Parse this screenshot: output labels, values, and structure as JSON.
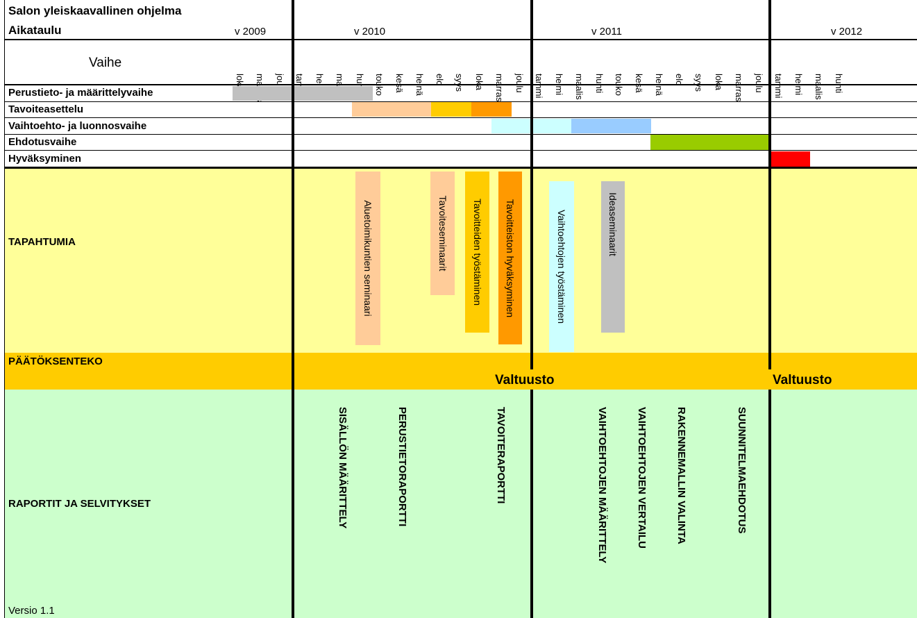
{
  "header": {
    "title": "Salon yleiskaavallinen ohjelma",
    "subtitle": "Aikataulu",
    "phase_header": "Vaihe",
    "years": [
      "v 2009",
      "v 2010",
      "v 2011",
      "v 2012"
    ]
  },
  "months": [
    "loka",
    "marras",
    "joulu",
    "tammi",
    "helmi",
    "maalis",
    "huhti",
    "touko",
    "kesä",
    "heinä",
    "elo",
    "syys",
    "loka",
    "marras",
    "joulu",
    "tammi",
    "helmi",
    "maalis",
    "huhti",
    "touko",
    "kesä",
    "heinä",
    "elo",
    "syys",
    "loka",
    "marras",
    "joulu",
    "tammi",
    "helmi",
    "maalis",
    "huhti"
  ],
  "phases": [
    {
      "label": "Perustieto- ja määrittelyvaihe",
      "start_month": 0,
      "end_month": 7,
      "color": "#c0c0c0"
    },
    {
      "label": "Tavoiteasettelu",
      "segments": [
        {
          "start_month": 5.6,
          "end_month": 9.5,
          "color": "#ffcc99"
        },
        {
          "start_month": 9.5,
          "end_month": 11.5,
          "color": "#ffcc00"
        },
        {
          "start_month": 11.5,
          "end_month": 13.5,
          "color": "#ff9900"
        }
      ]
    },
    {
      "label": "Vaihtoehto- ja luonnosvaihe",
      "segments": [
        {
          "start_month": 12.5,
          "end_month": 16.6,
          "color": "#ccffff"
        },
        {
          "start_month": 16.6,
          "end_month": 20.6,
          "color": "#99ccff"
        }
      ]
    },
    {
      "label": "Ehdotusvaihe",
      "start_month": 20.6,
      "end_month": 26.5,
      "color": "#99cc00"
    },
    {
      "label": "Hyväksyminen",
      "start_month": 27,
      "end_month": 29,
      "color": "#ff0000"
    }
  ],
  "events_section": {
    "label": "TAPAHTUMIA",
    "events": [
      {
        "text": "Aluetoimikuntien seminaari",
        "color": "#ffcc99"
      },
      {
        "text": "Tavoiteseminaarit",
        "color": "#ffcc99"
      },
      {
        "text": "Tavoitteiden työstäminen",
        "color": "#ffcc00"
      },
      {
        "text": "Tavoitteiston hyväksyminen",
        "color": "#ff9900"
      },
      {
        "text": "Vaihtoehtojen työstäminen",
        "color": "#ccffff"
      },
      {
        "text": "Ideaseminaarit",
        "color": "#c0c0c0"
      }
    ]
  },
  "decision_section": {
    "label": "PÄÄTÖKSENTEKO",
    "items": [
      "Valtuusto",
      "Valtuusto"
    ]
  },
  "reports_section": {
    "label": "RAPORTIT JA SELVITYKSET",
    "reports": [
      "SISÄLLÖN MÄÄRITTELY",
      "PERUSTIETORAPORTTI",
      "TAVOITERAPORTTI",
      "VAIHTOEHTOJEN MÄÄRITTELY",
      "VAIHTOEHTOJEN VERTAILU",
      "RAKENNEMALLIN VALINTA",
      "SUUNNITELMAEHDOTUS"
    ]
  },
  "footer": {
    "version": "Versio 1.1"
  },
  "colors": {
    "events_bg": "#ffff99",
    "decision_bg": "#ffcc00",
    "reports_bg": "#ccffcc"
  }
}
